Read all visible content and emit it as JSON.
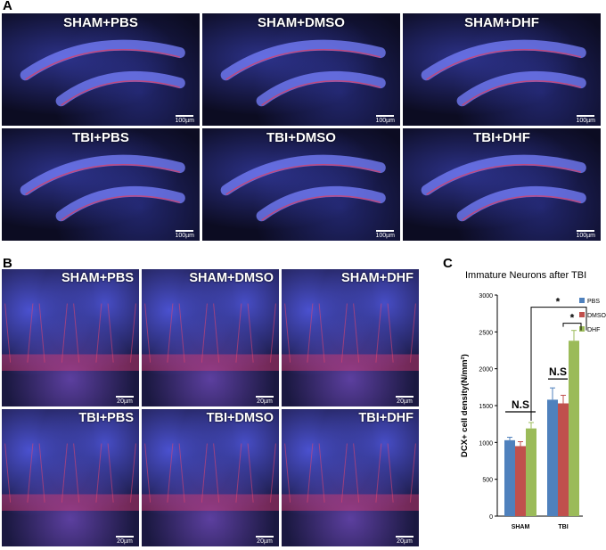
{
  "panels": {
    "a": {
      "letter": "A",
      "images": [
        {
          "label": "SHAM+PBS",
          "scale": "100µm"
        },
        {
          "label": "SHAM+DMSO",
          "scale": "100µm"
        },
        {
          "label": "SHAM+DHF",
          "scale": "100µm"
        },
        {
          "label": "TBI+PBS",
          "scale": "100µm"
        },
        {
          "label": "TBI+DMSO",
          "scale": "100µm"
        },
        {
          "label": "TBI+DHF",
          "scale": "100µm"
        }
      ]
    },
    "b": {
      "letter": "B",
      "images": [
        {
          "label": "SHAM+PBS",
          "scale": "20µm"
        },
        {
          "label": "SHAM+DMSO",
          "scale": "20µm"
        },
        {
          "label": "SHAM+DHF",
          "scale": "20µm"
        },
        {
          "label": "TBI+PBS",
          "scale": "20µm"
        },
        {
          "label": "TBI+DMSO",
          "scale": "20µm"
        },
        {
          "label": "TBI+DHF",
          "scale": "20µm"
        }
      ]
    },
    "c": {
      "letter": "C"
    }
  },
  "colors": {
    "PBS": "#4f81bd",
    "DMSO": "#c0504d",
    "DHF": "#9bbb59"
  },
  "chart_data": {
    "type": "bar",
    "title": "Immature Neurons after TBI",
    "ylabel": "DCX+ cell density(N/mm²)",
    "xlabel": "",
    "ylim": [
      0,
      3000
    ],
    "yticks": [
      "0",
      "500",
      "1000",
      "1500",
      "2000",
      "2500",
      "3000"
    ],
    "categories": [
      "SHAM",
      "TBI"
    ],
    "series": [
      {
        "name": "PBS",
        "values": [
          1030,
          1580
        ],
        "errors": [
          40,
          160
        ]
      },
      {
        "name": "DMSO",
        "values": [
          950,
          1530
        ],
        "errors": [
          60,
          110
        ]
      },
      {
        "name": "DHF",
        "values": [
          1190,
          2380
        ],
        "errors": [
          80,
          140
        ]
      }
    ],
    "annotations": {
      "ns": "N.S",
      "star": "*"
    },
    "legend_position": "top-right"
  }
}
